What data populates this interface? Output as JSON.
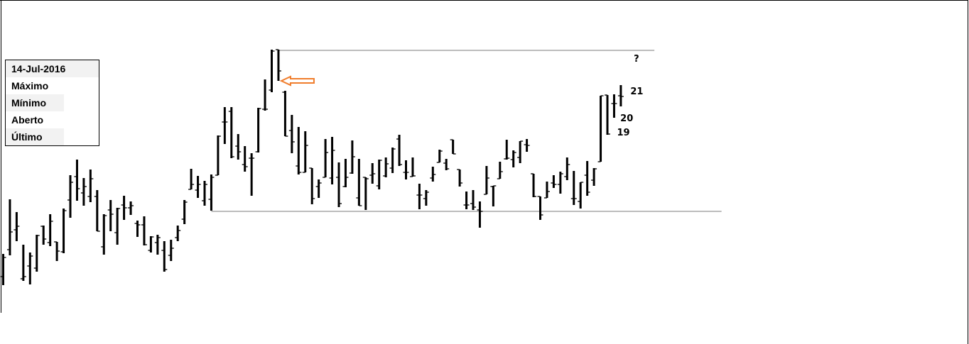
{
  "chart_data": {
    "type": "ohlc-bar",
    "title": "",
    "xlabel": "",
    "ylabel": "",
    "ylim": [
      0,
      44
    ],
    "grid": false,
    "bar_color": "#000000",
    "bars": [
      {
        "h": 8.2,
        "l": 3.8,
        "o": 5.0,
        "c": 7.7
      },
      {
        "h": 15.9,
        "l": 8.0,
        "o": 8.8,
        "c": 11.3
      },
      {
        "h": 14.1,
        "l": 10.0,
        "o": 11.6,
        "c": 12.1
      },
      {
        "h": 9.5,
        "l": 4.4,
        "o": 4.7,
        "c": 5.0
      },
      {
        "h": 8.4,
        "l": 3.9,
        "o": 6.5,
        "c": 7.9
      },
      {
        "h": 10.9,
        "l": 5.7,
        "o": 6.2,
        "c": 10.8
      },
      {
        "h": 12.2,
        "l": 9.5,
        "o": 12.1,
        "c": 10.3
      },
      {
        "h": 13.8,
        "l": 9.3,
        "o": 9.8,
        "c": 12.8
      },
      {
        "h": 9.9,
        "l": 7.2,
        "o": 9.9,
        "c": 8.6
      },
      {
        "h": 14.6,
        "l": 8.3,
        "o": 8.5,
        "c": 14.3
      },
      {
        "h": 19.3,
        "l": 13.3,
        "o": 15.8,
        "c": 18.3
      },
      {
        "h": 21.5,
        "l": 15.7,
        "o": 19.1,
        "c": 17.4
      },
      {
        "h": 18.9,
        "l": 15.0,
        "o": 16.8,
        "c": 17.7
      },
      {
        "h": 20.1,
        "l": 15.5,
        "o": 16.3,
        "c": 18.8
      },
      {
        "h": 17.2,
        "l": 11.4,
        "o": 16.3,
        "c": 11.4
      },
      {
        "h": 13.8,
        "l": 8.1,
        "o": 9.2,
        "c": 13.6
      },
      {
        "h": 15.8,
        "l": 11.4,
        "o": 14.4,
        "c": 13.8
      },
      {
        "h": 14.7,
        "l": 9.5,
        "o": 11.2,
        "c": 14.6
      },
      {
        "h": 16.4,
        "l": 13.0,
        "o": 15.1,
        "c": 14.7
      },
      {
        "h": 15.6,
        "l": 13.7,
        "o": 14.7,
        "c": 15.0
      },
      {
        "h": 12.9,
        "l": 10.6,
        "o": 12.5,
        "c": 12.3
      },
      {
        "h": 13.5,
        "l": 9.4,
        "o": 12.3,
        "c": 9.5
      },
      {
        "h": 10.7,
        "l": 8.4,
        "o": 8.7,
        "c": 10.6
      },
      {
        "h": 10.9,
        "l": 8.1,
        "o": 9.8,
        "c": 10.5
      },
      {
        "h": 10.0,
        "l": 5.7,
        "o": 8.7,
        "c": 6.0
      },
      {
        "h": 10.2,
        "l": 7.2,
        "o": 8.0,
        "c": 9.0
      },
      {
        "h": 12.2,
        "l": 10.0,
        "o": 10.5,
        "c": 11.5
      },
      {
        "h": 15.8,
        "l": 12.4,
        "o": 13.1,
        "c": 15.5
      },
      {
        "h": 20.2,
        "l": 17.3,
        "o": 17.3,
        "c": 18.0
      },
      {
        "h": 19.2,
        "l": 16.1,
        "o": 17.2,
        "c": 18.0
      },
      {
        "h": 18.5,
        "l": 15.0,
        "o": 15.7,
        "c": 18.0
      },
      {
        "h": 19.4,
        "l": 14.3,
        "o": 15.9,
        "c": 19.0
      },
      {
        "h": 24.9,
        "l": 19.3,
        "o": 19.3,
        "c": 24.8
      },
      {
        "h": 28.9,
        "l": 23.7,
        "o": 26.8,
        "c": 26.8
      },
      {
        "h": 28.9,
        "l": 21.7,
        "o": 28.3,
        "c": 21.9
      },
      {
        "h": 25.1,
        "l": 21.5,
        "o": 23.4,
        "c": 22.6
      },
      {
        "h": 23.4,
        "l": 19.8,
        "o": 20.8,
        "c": 20.5
      },
      {
        "h": 22.4,
        "l": 16.4,
        "o": 21.7,
        "c": 21.7
      },
      {
        "h": 28.8,
        "l": 22.5,
        "o": 22.6,
        "c": 28.7
      },
      {
        "h": 32.8,
        "l": 28.4,
        "o": 28.6,
        "c": 28.6
      },
      {
        "h": 37.0,
        "l": 31.0,
        "o": 31.3,
        "c": 36.8
      },
      {
        "h": 37.0,
        "l": 32.6,
        "o": 37.0,
        "c": 34.0
      },
      {
        "h": 31.2,
        "l": 24.8,
        "o": 31.0,
        "c": 24.8
      },
      {
        "h": 27.8,
        "l": 22.4,
        "o": 25.6,
        "c": 24.0
      },
      {
        "h": 26.1,
        "l": 19.4,
        "o": 20.6,
        "c": 19.7
      },
      {
        "h": 25.5,
        "l": 19.7,
        "o": 19.7,
        "c": 23.5
      },
      {
        "h": 20.3,
        "l": 15.2,
        "o": 20.3,
        "c": 16.0
      },
      {
        "h": 18.7,
        "l": 16.1,
        "o": 17.7,
        "c": 18.2
      },
      {
        "h": 24.4,
        "l": 19.0,
        "o": 19.0,
        "c": 22.5
      },
      {
        "h": 24.7,
        "l": 18.0,
        "o": 18.9,
        "c": 22.8
      },
      {
        "h": 21.1,
        "l": 14.8,
        "o": 19.0,
        "c": 15.3
      },
      {
        "h": 21.6,
        "l": 17.6,
        "o": 17.7,
        "c": 19.0
      },
      {
        "h": 24.2,
        "l": 19.5,
        "o": 19.6,
        "c": 21.9
      },
      {
        "h": 21.6,
        "l": 15.0,
        "o": 16.1,
        "c": 15.0
      },
      {
        "h": 19.0,
        "l": 14.4,
        "o": 19.0,
        "c": 18.8
      },
      {
        "h": 21.0,
        "l": 18.1,
        "o": 19.3,
        "c": 19.5
      },
      {
        "h": 21.5,
        "l": 17.3,
        "o": 17.8,
        "c": 21.4
      },
      {
        "h": 21.8,
        "l": 19.0,
        "o": 19.2,
        "c": 20.9
      },
      {
        "h": 23.2,
        "l": 19.6,
        "o": 20.3,
        "c": 23.0
      },
      {
        "h": 25.0,
        "l": 20.6,
        "o": 24.4,
        "c": 20.8
      },
      {
        "h": 21.4,
        "l": 18.7,
        "o": 19.7,
        "c": 19.7
      },
      {
        "h": 21.8,
        "l": 19.1,
        "o": 19.1,
        "c": 19.2
      },
      {
        "h": 18.1,
        "l": 14.5,
        "o": 16.5,
        "c": 16.5
      },
      {
        "h": 17.2,
        "l": 15.0,
        "o": 16.0,
        "c": 16.9
      },
      {
        "h": 20.5,
        "l": 18.4,
        "o": 18.9,
        "c": 19.4
      },
      {
        "h": 22.9,
        "l": 21.1,
        "o": 21.1,
        "c": 22.7
      },
      {
        "h": 21.6,
        "l": 20.0,
        "o": 21.0,
        "c": 20.2
      },
      {
        "h": 24.3,
        "l": 22.3,
        "o": 24.3,
        "c": 22.3
      },
      {
        "h": 20.1,
        "l": 17.7,
        "o": 20.1,
        "c": 18.2
      },
      {
        "h": 17.0,
        "l": 14.5,
        "o": 15.1,
        "c": 15.1
      },
      {
        "h": 17.2,
        "l": 14.4,
        "o": 15.3,
        "c": 14.8
      },
      {
        "h": 15.6,
        "l": 11.9,
        "o": 14.4,
        "c": 14.2
      },
      {
        "h": 20.6,
        "l": 16.6,
        "o": 16.6,
        "c": 18.9
      },
      {
        "h": 17.8,
        "l": 14.9,
        "o": 17.7,
        "c": 17.8
      },
      {
        "h": 21.2,
        "l": 18.8,
        "o": 18.8,
        "c": 19.8
      },
      {
        "h": 24.3,
        "l": 21.5,
        "o": 21.6,
        "c": 21.7
      },
      {
        "h": 22.8,
        "l": 20.4,
        "o": 21.5,
        "c": 22.5
      },
      {
        "h": 24.1,
        "l": 21.0,
        "o": 21.8,
        "c": 24.1
      },
      {
        "h": 24.4,
        "l": 22.6,
        "o": 23.6,
        "c": 23.5
      },
      {
        "h": 19.5,
        "l": 16.2,
        "o": 19.5,
        "c": 16.3
      },
      {
        "h": 16.3,
        "l": 13.0,
        "o": 16.3,
        "c": 13.7
      },
      {
        "h": 18.4,
        "l": 16.1,
        "o": 16.1,
        "c": 17.0
      },
      {
        "h": 19.3,
        "l": 17.5,
        "o": 18.2,
        "c": 18.0
      },
      {
        "h": 19.8,
        "l": 16.7,
        "o": 18.0,
        "c": 19.5
      },
      {
        "h": 21.8,
        "l": 18.6,
        "o": 19.1,
        "c": 20.8
      },
      {
        "h": 19.9,
        "l": 15.1,
        "o": 16.0,
        "c": 16.0
      },
      {
        "h": 18.3,
        "l": 14.6,
        "o": 15.6,
        "c": 18.3
      },
      {
        "h": 21.3,
        "l": 16.4,
        "o": 19.3,
        "c": 16.9
      },
      {
        "h": 20.3,
        "l": 17.8,
        "o": 18.6,
        "c": 20.2
      },
      {
        "h": 30.5,
        "l": 21.2,
        "o": 21.2,
        "c": 30.5
      },
      {
        "h": 30.6,
        "l": 25.0,
        "o": 30.6,
        "c": 25.1
      },
      {
        "h": 30.7,
        "l": 27.4,
        "o": 29.4,
        "c": 29.4
      },
      {
        "h": 32.0,
        "l": 29.0,
        "o": 30.5,
        "c": 30.4
      }
    ],
    "levels": [
      {
        "name": "resistance",
        "price": 36.9,
        "from_bar": 42,
        "to_bar": 98,
        "color": "#a6a6a6"
      },
      {
        "name": "support",
        "price": 14.2,
        "from_bar": 32,
        "to_bar": 108,
        "color": "#a6a6a6"
      }
    ],
    "annotations": [
      {
        "text": "?",
        "bar": 94.5,
        "price": 35.8
      },
      {
        "text": "21",
        "bar": 94.0,
        "price": 31.2
      },
      {
        "text": "20",
        "bar": 92.5,
        "price": 27.4
      },
      {
        "text": "19",
        "bar": 92.0,
        "price": 25.4
      }
    ],
    "arrow": {
      "bar": 42,
      "price": 32.6,
      "direction": "left",
      "color": "#f07d2c"
    }
  },
  "legend": {
    "date": "14-Jul-2016",
    "rows": [
      {
        "label": "Máximo",
        "value": ""
      },
      {
        "label": "Mínimo",
        "value": ""
      },
      {
        "label": "Aberto",
        "value": ""
      },
      {
        "label": "Último",
        "value": ""
      }
    ]
  }
}
